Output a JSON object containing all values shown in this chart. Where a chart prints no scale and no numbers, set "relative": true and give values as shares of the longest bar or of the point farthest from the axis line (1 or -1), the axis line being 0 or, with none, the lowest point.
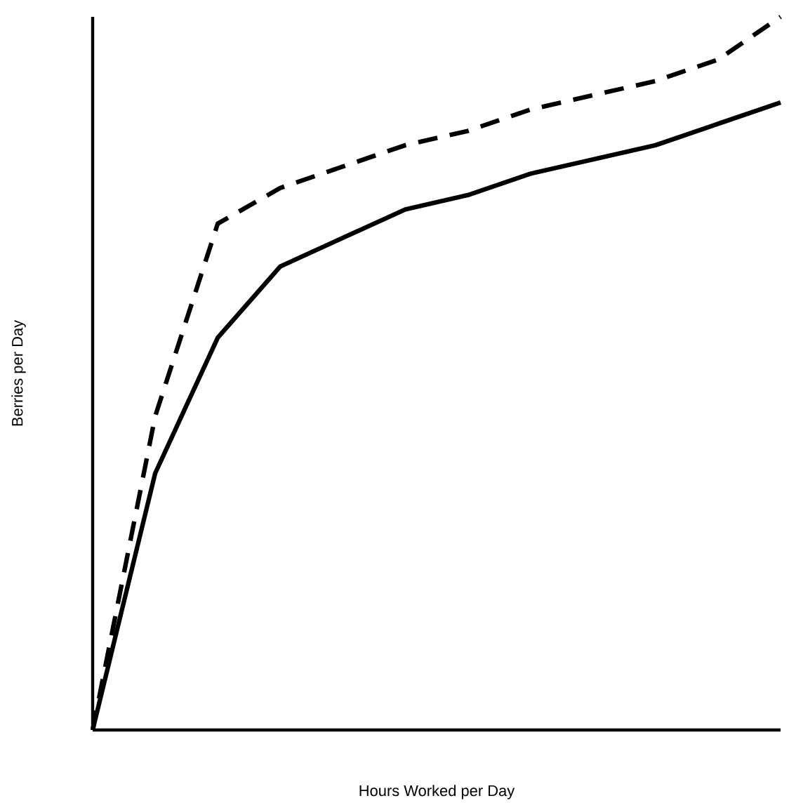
{
  "chart_data": {
    "type": "line",
    "relative": true,
    "xlabel": "Hours Worked per Day",
    "ylabel": "Berries per Day",
    "categories": [
      null,
      null,
      null,
      null,
      null,
      null,
      null,
      null,
      null,
      null,
      null,
      null
    ],
    "series": [
      {
        "color": "#000000",
        "line_style": "dashed",
        "values": [
          0,
          0.44,
          0.71,
          0.76,
          0.79,
          0.82,
          0.84,
          0.87,
          0.89,
          0.91,
          0.94,
          1
        ]
      },
      {
        "color": "#000000",
        "line_style": "solid",
        "values": [
          0,
          0.36,
          0.55,
          0.65,
          0.69,
          0.73,
          0.75,
          0.78,
          0.8,
          0.82,
          0.85,
          0.88
        ]
      }
    ]
  }
}
